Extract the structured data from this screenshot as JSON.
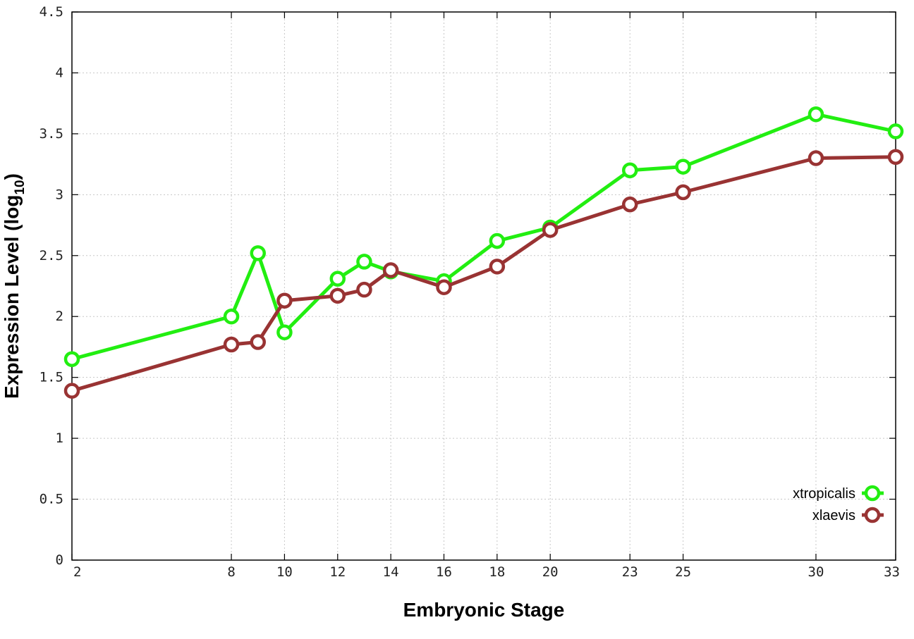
{
  "chart_data": {
    "type": "line",
    "xlabel": "Embryonic Stage",
    "ylabel_main": "Expression Level (log",
    "ylabel_sub": "10",
    "ylabel_close": ")",
    "x_ticks": [
      2,
      8,
      10,
      12,
      14,
      16,
      18,
      20,
      23,
      25,
      30,
      33
    ],
    "y_ticks": [
      "0",
      "0.5",
      "1",
      "1.5",
      "2",
      "2.5",
      "3",
      "3.5",
      "4",
      "4.5"
    ],
    "xlim": [
      2,
      33
    ],
    "ylim": [
      0,
      4.5
    ],
    "grid": true,
    "legend_position": "bottom-right",
    "series": [
      {
        "name": "xtropicalis",
        "color": "#22ee11",
        "x": [
          2,
          8,
          9,
          10,
          12,
          13,
          14,
          16,
          18,
          20,
          23,
          25,
          30,
          33
        ],
        "y": [
          1.65,
          2.0,
          2.52,
          1.87,
          2.31,
          2.45,
          2.37,
          2.29,
          2.62,
          2.73,
          3.2,
          3.23,
          3.66,
          3.52
        ]
      },
      {
        "name": "xlaevis",
        "color": "#993333",
        "x": [
          2,
          8,
          9,
          10,
          12,
          13,
          14,
          16,
          18,
          20,
          23,
          25,
          30,
          33
        ],
        "y": [
          1.39,
          1.77,
          1.79,
          2.13,
          2.17,
          2.22,
          2.38,
          2.24,
          2.41,
          2.71,
          2.92,
          3.02,
          3.3,
          3.31
        ]
      }
    ]
  }
}
